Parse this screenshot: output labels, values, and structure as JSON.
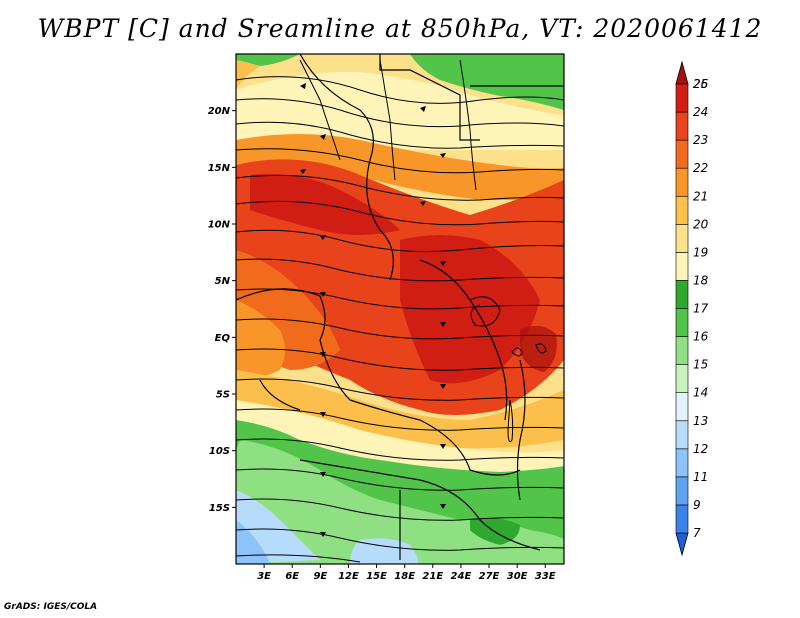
{
  "title": "WBPT [C] and Sreamline at 850hPa, VT: 2020061412",
  "credit": "GrADS: IGES/COLA",
  "map": {
    "lat_labels": [
      "20N",
      "15N",
      "10N",
      "5N",
      "EQ",
      "5S",
      "10S",
      "15S"
    ],
    "lat_values": [
      20,
      15,
      10,
      5,
      0,
      -5,
      -10,
      -15
    ],
    "lon_labels": [
      "3E",
      "6E",
      "9E",
      "12E",
      "15E",
      "18E",
      "21E",
      "24E",
      "27E",
      "30E",
      "33E"
    ],
    "lon_values": [
      3,
      6,
      9,
      12,
      15,
      18,
      21,
      24,
      27,
      30,
      33
    ],
    "lon_range": [
      0,
      35
    ],
    "lat_range": [
      -20,
      25
    ]
  },
  "colorbar": {
    "levels": [
      "7",
      "9",
      "11",
      "12",
      "13",
      "14",
      "15",
      "16",
      "17",
      "18",
      "19",
      "20",
      "21",
      "22",
      "23",
      "24",
      "25",
      "26"
    ],
    "colors": [
      "#1f5fd6",
      "#3b83e8",
      "#5fa3f2",
      "#8cc3f8",
      "#b7dcfb",
      "#e2f3fb",
      "#c9f2c0",
      "#8fe082",
      "#52c44a",
      "#2ea82e",
      "#fff4b8",
      "#fde08a",
      "#fcbf4c",
      "#f9962a",
      "#f26a1c",
      "#e8431a",
      "#d11e14",
      "#a8100f"
    ]
  }
}
